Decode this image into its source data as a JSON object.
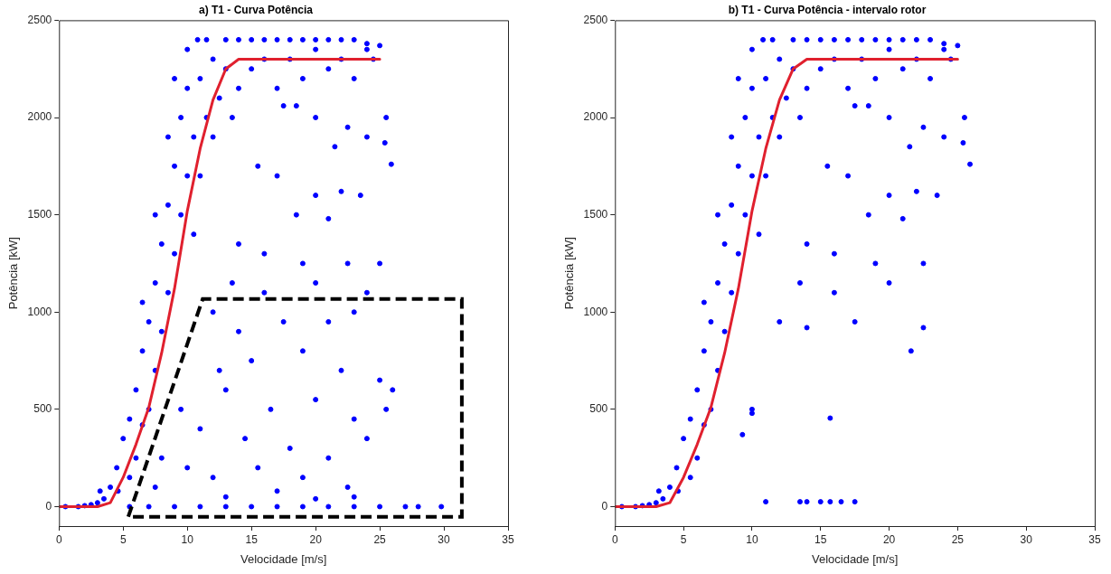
{
  "chart_data": [
    {
      "type": "scatter",
      "title": "a) T1 - Curva Potência",
      "xlabel": "Velocidade [m/s]",
      "ylabel": "Potência [kW]",
      "xlim": [
        0,
        35
      ],
      "ylim": [
        -100,
        2500
      ],
      "xticks": [
        0,
        5,
        10,
        15,
        20,
        25,
        30,
        35
      ],
      "yticks": [
        0,
        500,
        1000,
        1500,
        2000,
        2500
      ],
      "grid": false,
      "legend": false,
      "series": [
        {
          "type": "scatter",
          "marker": "circle",
          "color": "#0000ff",
          "x": [
            0.5,
            1.5,
            2,
            2.5,
            3,
            3.5,
            3.2,
            4,
            4.5,
            5,
            4.6,
            5.5,
            5.5,
            6,
            6,
            6.5,
            6.5,
            7,
            7,
            7.5,
            7.5,
            8,
            8,
            8.5,
            8.5,
            9,
            9,
            9.5,
            9.5,
            10,
            10,
            10.5,
            10.8,
            10.5,
            11,
            11,
            11.5,
            11.5,
            12,
            12,
            12.5,
            13,
            13,
            13.5,
            14,
            14,
            15,
            15,
            16,
            16,
            17,
            17,
            18,
            18,
            19,
            19,
            20,
            20,
            21,
            21,
            22,
            22,
            23,
            23,
            24,
            24,
            25,
            24.5,
            6.5,
            7.5,
            8.5,
            9,
            10,
            25.5,
            25.4,
            25.9,
            17.5,
            18.5,
            20,
            22.5,
            24,
            21.5,
            17,
            15.5,
            20,
            22,
            23.5,
            18.5,
            21,
            16,
            14,
            19,
            22.5,
            25,
            13.5,
            16,
            20,
            24,
            12,
            14,
            17.5,
            21,
            23,
            12.5,
            15,
            19,
            22,
            25,
            13,
            16.5,
            20,
            23,
            26,
            9.5,
            11,
            14.5,
            18,
            21,
            24,
            25.5,
            8,
            10,
            12,
            15.5,
            19,
            22.5,
            7.5,
            13,
            17,
            20,
            23,
            5.5,
            7,
            9,
            11,
            13,
            15,
            17,
            19,
            21,
            23,
            25,
            27,
            28,
            29.8
          ],
          "values": [
            0,
            0,
            5,
            10,
            20,
            40,
            80,
            100,
            200,
            350,
            80,
            150,
            450,
            600,
            250,
            420,
            800,
            950,
            500,
            700,
            1150,
            1350,
            900,
            1100,
            1550,
            1750,
            1300,
            1500,
            2000,
            2150,
            1700,
            1900,
            2400,
            1400,
            2200,
            1700,
            2000,
            2400,
            2300,
            1900,
            2100,
            2400,
            2250,
            2000,
            2150,
            2400,
            2400,
            2250,
            2300,
            2400,
            2150,
            2400,
            2300,
            2400,
            2200,
            2400,
            2350,
            2400,
            2250,
            2400,
            2300,
            2400,
            2200,
            2400,
            2350,
            2380,
            2370,
            2300,
            1050,
            1500,
            1900,
            2200,
            2350,
            2000,
            1870,
            1760,
            2060,
            2060,
            2000,
            1950,
            1900,
            1850,
            1700,
            1750,
            1600,
            1620,
            1600,
            1500,
            1480,
            1300,
            1350,
            1250,
            1250,
            1250,
            1150,
            1100,
            1150,
            1100,
            1000,
            900,
            950,
            950,
            1000,
            700,
            750,
            800,
            700,
            650,
            600,
            500,
            550,
            450,
            600,
            500,
            400,
            350,
            300,
            250,
            350,
            500,
            250,
            200,
            150,
            200,
            150,
            100,
            100,
            50,
            80,
            40,
            50,
            0,
            0,
            0,
            0,
            0,
            0,
            0,
            0,
            0,
            0,
            0,
            0,
            0,
            0
          ]
        },
        {
          "type": "line",
          "marker": "none",
          "color": "#e0202e",
          "x": [
            0,
            3,
            4,
            5,
            6,
            7,
            8,
            9,
            10,
            11,
            12,
            13,
            14,
            25
          ],
          "values": [
            0,
            0,
            20,
            150,
            320,
            510,
            790,
            1120,
            1520,
            1840,
            2090,
            2250,
            2300,
            2300
          ]
        }
      ]
    },
    {
      "type": "scatter",
      "title": "b) T1 - Curva Potência - intervalo rotor",
      "xlabel": "Velocidade [m/s]",
      "ylabel": "Potência [kW]",
      "xlim": [
        0,
        35
      ],
      "ylim": [
        -100,
        2500
      ],
      "xticks": [
        0,
        5,
        10,
        15,
        20,
        25,
        30,
        35
      ],
      "yticks": [
        0,
        500,
        1000,
        1500,
        2000,
        2500
      ],
      "grid": false,
      "legend": false,
      "series": [
        {
          "type": "scatter",
          "marker": "circle",
          "color": "#0000ff",
          "x": [
            0.5,
            1.5,
            2,
            2.5,
            3,
            3.5,
            3.2,
            4,
            4.5,
            5,
            4.6,
            5.5,
            5.5,
            6,
            6,
            6.5,
            6.5,
            7,
            7,
            7.5,
            7.5,
            8,
            8,
            8.5,
            8.5,
            9,
            9,
            9.5,
            9.5,
            10,
            10,
            10.5,
            10.8,
            10.5,
            11,
            11,
            11.5,
            11.5,
            12,
            12,
            12.5,
            13,
            13,
            13.5,
            14,
            14,
            15,
            15,
            16,
            16,
            17,
            17,
            18,
            18,
            19,
            19,
            20,
            20,
            21,
            21,
            22,
            22,
            23,
            23,
            24,
            24,
            25,
            24.5,
            6.5,
            7.5,
            8.5,
            9,
            10,
            25.5,
            25.4,
            25.9,
            17.5,
            18.5,
            20,
            22.5,
            24,
            21.5,
            17,
            15.5,
            20,
            22,
            23.5,
            18.5,
            21,
            16,
            14,
            19,
            22.5,
            13.5,
            16,
            20,
            12,
            14,
            17.5,
            22.5,
            10,
            10,
            9.3,
            15.7,
            21.6,
            11,
            13.5,
            14,
            15,
            15.7,
            16.5,
            17.5
          ],
          "values": [
            0,
            0,
            5,
            10,
            20,
            40,
            80,
            100,
            200,
            350,
            80,
            150,
            450,
            600,
            250,
            420,
            800,
            950,
            500,
            700,
            1150,
            1350,
            900,
            1100,
            1550,
            1750,
            1300,
            1500,
            2000,
            2150,
            1700,
            1900,
            2400,
            1400,
            2200,
            1700,
            2000,
            2400,
            2300,
            1900,
            2100,
            2400,
            2250,
            2000,
            2150,
            2400,
            2400,
            2250,
            2300,
            2400,
            2150,
            2400,
            2300,
            2400,
            2200,
            2400,
            2350,
            2400,
            2250,
            2400,
            2300,
            2400,
            2200,
            2400,
            2350,
            2380,
            2370,
            2300,
            1050,
            1500,
            1900,
            2200,
            2350,
            2000,
            1870,
            1760,
            2060,
            2060,
            2000,
            1950,
            1900,
            1850,
            1700,
            1750,
            1600,
            1620,
            1600,
            1500,
            1480,
            1300,
            1350,
            1250,
            1250,
            1150,
            1100,
            1150,
            950,
            920,
            950,
            920,
            500,
            480,
            370,
            455,
            800,
            25,
            25,
            25,
            25,
            25,
            25,
            25
          ]
        },
        {
          "type": "line",
          "marker": "none",
          "color": "#e0202e",
          "x": [
            0,
            3,
            4,
            5,
            6,
            7,
            8,
            9,
            10,
            11,
            12,
            13,
            14,
            25
          ],
          "values": [
            0,
            0,
            20,
            150,
            320,
            510,
            790,
            1120,
            1520,
            1840,
            2090,
            2250,
            2300,
            2300
          ]
        }
      ]
    }
  ]
}
